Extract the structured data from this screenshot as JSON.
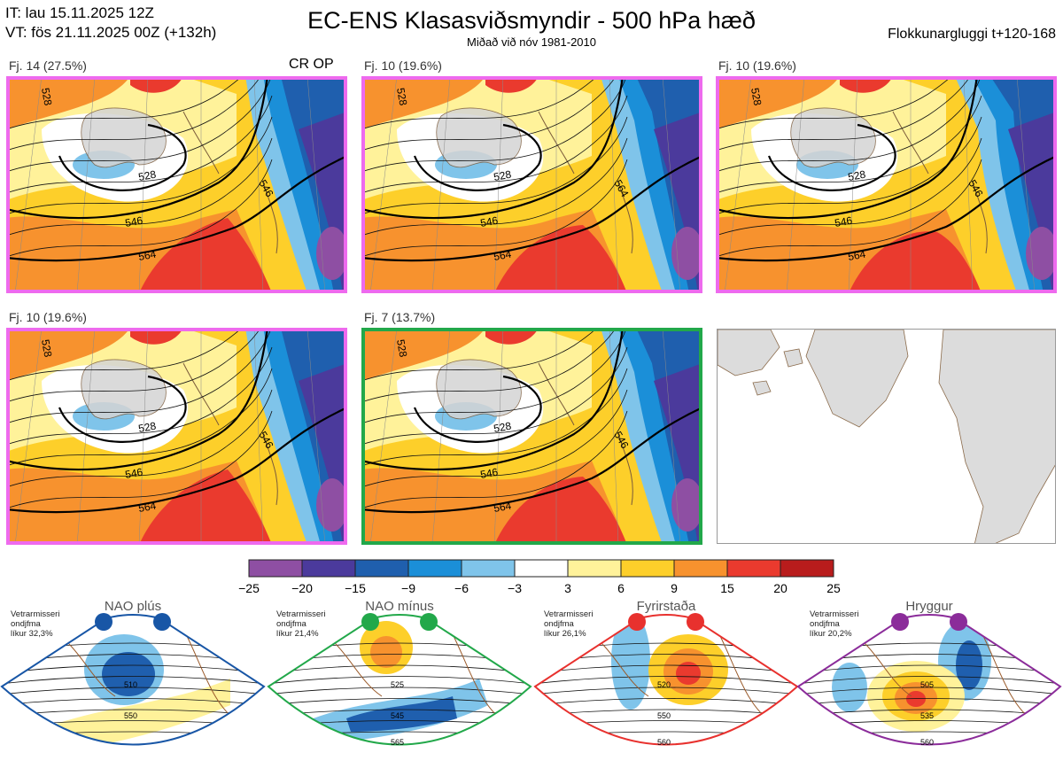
{
  "header": {
    "it_line": "IT: lau 15.11.2025 12Z",
    "vt_line": "VT: fös 21.11.2025 00Z  (+132h)",
    "title": "EC-ENS Klasasviðsmyndir - 500 hPa hæð",
    "subtitle": "Miðað við nóv 1981-2010",
    "window": "Flokkunargluggi t+120-168"
  },
  "panels": [
    {
      "label": "Fj. 14 (27.5%)",
      "extra": "CR OP",
      "border": "#ee6aee",
      "contours": [
        "528",
        "546",
        "564",
        "528",
        "546"
      ]
    },
    {
      "label": "Fj. 10 (19.6%)",
      "extra": "",
      "border": "#ee6aee",
      "contours": [
        "528",
        "546",
        "564",
        "528",
        "564"
      ]
    },
    {
      "label": "Fj. 10 (19.6%)",
      "extra": "",
      "border": "#ee6aee",
      "contours": [
        "528",
        "546",
        "564",
        "528",
        "546"
      ]
    },
    {
      "label": "Fj. 10 (19.6%)",
      "extra": "",
      "border": "#ee6aee",
      "contours": [
        "528",
        "546",
        "564",
        "528",
        "546"
      ]
    },
    {
      "label": "Fj. 7 (13.7%)",
      "extra": "",
      "border": "#22a84a",
      "contours": [
        "528",
        "546",
        "564",
        "528",
        "546"
      ]
    }
  ],
  "colorbar": {
    "ticks": [
      "−25",
      "−20",
      "−15",
      "−9",
      "−6",
      "−3",
      "3",
      "6",
      "9",
      "15",
      "20",
      "25"
    ],
    "colors": [
      "#8e4fa3",
      "#4b3a9c",
      "#1f5fae",
      "#1b8fd8",
      "#7fc4ea",
      "#ffffff",
      "#fff29a",
      "#fdcf2a",
      "#f7922e",
      "#ea3a2e",
      "#b81c1c"
    ]
  },
  "regimes": [
    {
      "name": "NAO plús",
      "note": [
        "Vetrarmisseri",
        "ondjfma",
        "líkur 32,3%"
      ],
      "color": "#1856a6",
      "contours": [
        "510",
        "550"
      ]
    },
    {
      "name": "NAO mínus",
      "note": [
        "Vetrarmisseri",
        "ondjfma",
        "líkur 21,4%"
      ],
      "color": "#22a84a",
      "contours": [
        "525",
        "545",
        "565"
      ]
    },
    {
      "name": "Fyrirstaða",
      "note": [
        "Vetrarmisseri",
        "ondjfma",
        "líkur 26,1%"
      ],
      "color": "#e8312e",
      "contours": [
        "520",
        "550",
        "560"
      ]
    },
    {
      "name": "Hryggur",
      "note": [
        "Vetrarmisseri",
        "ondjfma",
        "líkur 20,2%"
      ],
      "color": "#8b2c9a",
      "contours": [
        "505",
        "535",
        "560"
      ]
    }
  ]
}
